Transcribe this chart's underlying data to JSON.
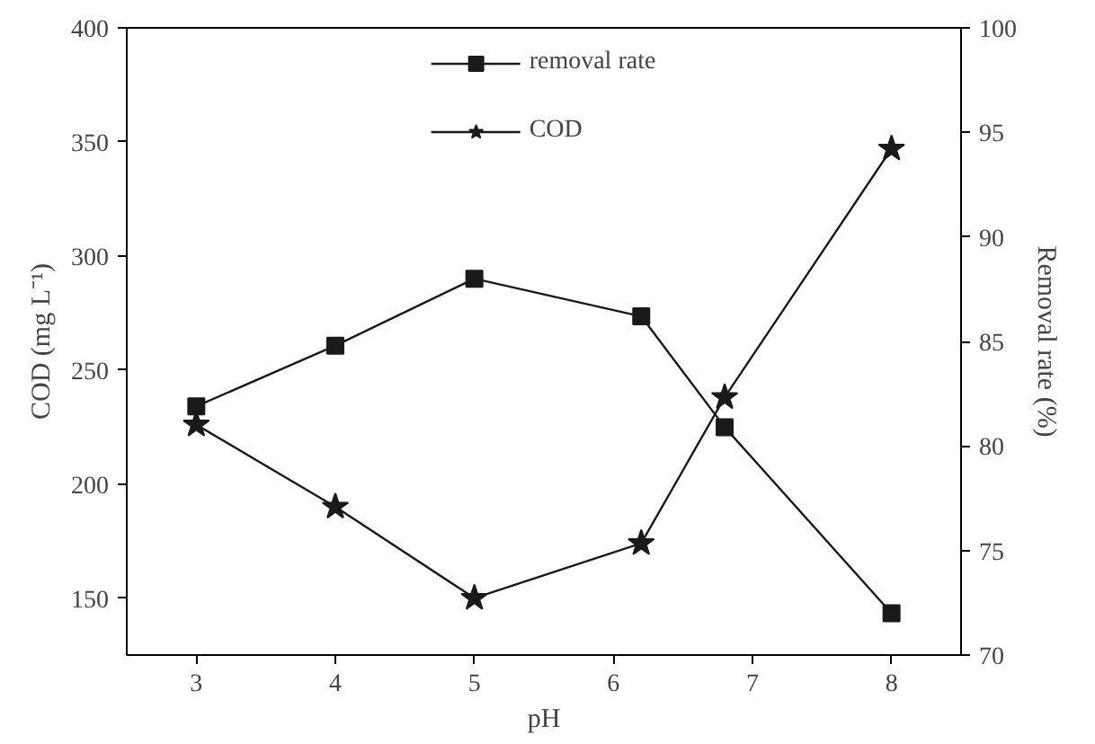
{
  "chart_data": {
    "type": "line",
    "xlabel": "pH",
    "ylabel": "COD (mg L⁻¹)",
    "y2label": "Removal rate (%)",
    "x": [
      3,
      4,
      5,
      6.2,
      6.8,
      8
    ],
    "series": [
      {
        "name": "removal rate",
        "color": "#1a1a1a",
        "axis": "y2",
        "marker": "square",
        "values": [
          81.9,
          84.8,
          88.0,
          86.2,
          80.9,
          72.0
        ]
      },
      {
        "name": "COD",
        "color": "#1a1a1a",
        "axis": "y",
        "marker": "star",
        "values": [
          226,
          190,
          150,
          174,
          238,
          347
        ]
      }
    ],
    "xlim": [
      2.5,
      8.5
    ],
    "xticks": [
      3,
      4,
      5,
      6,
      7,
      8
    ],
    "ylim": [
      125,
      400
    ],
    "yticks": [
      150,
      200,
      250,
      300,
      350,
      400
    ],
    "y2lim": [
      70,
      100
    ],
    "y2ticks": [
      70,
      75,
      80,
      85,
      90,
      95,
      100
    ],
    "grid": false,
    "legend": "top",
    "line_style": "solid"
  }
}
